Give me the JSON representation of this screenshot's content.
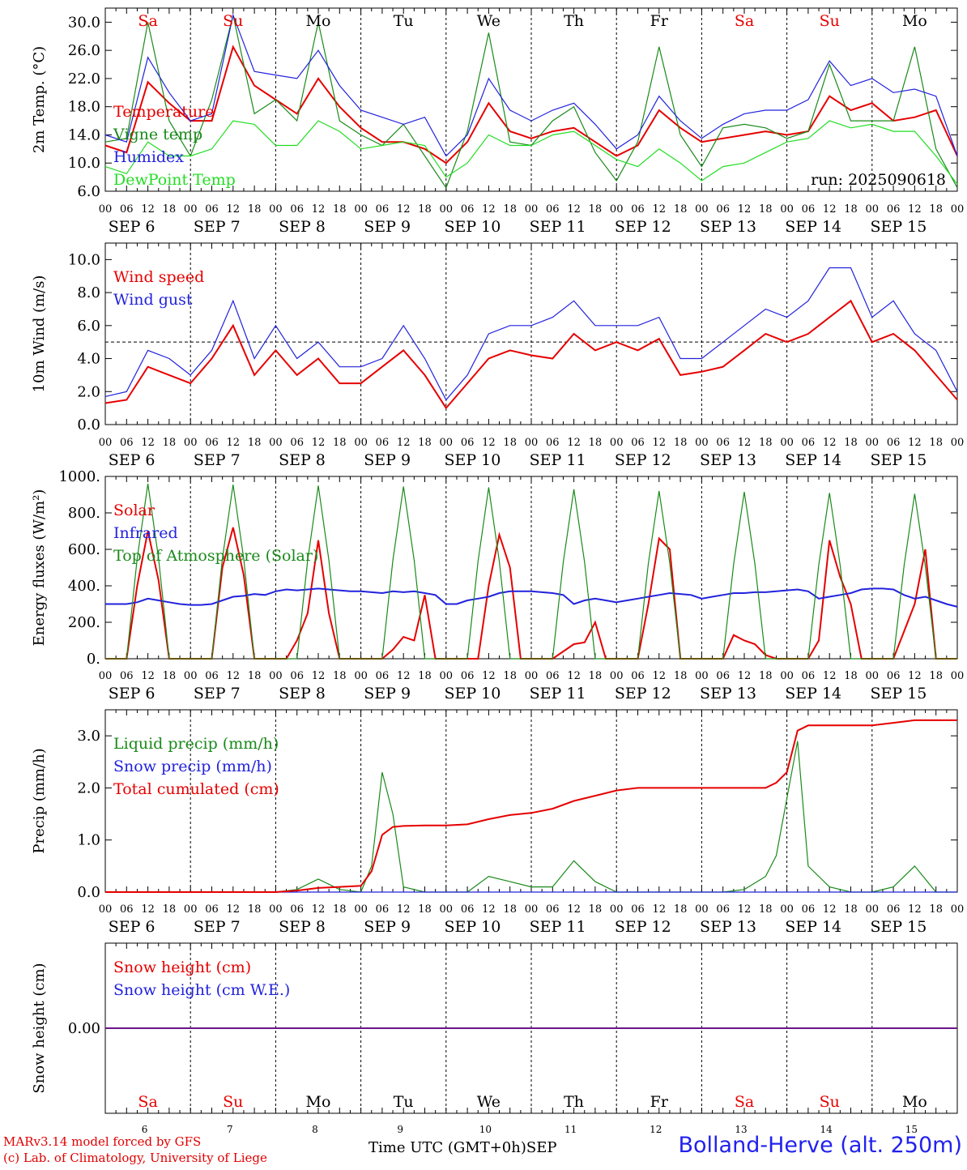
{
  "footer": {
    "credit_line1": "MARv3.14 model forced by GFS",
    "credit_line2": "(c) Lab. of Climatology, University of Liege",
    "time_label": "Time UTC (GMT+0h)",
    "month_label": "SEP",
    "station": "Bolland-Herve (alt. 250m)"
  },
  "colors": {
    "red": "#e60000",
    "green": "#1a8a1a",
    "blue": "#2222dd",
    "lightgreen": "#22dd22",
    "weekend": "#e60000",
    "weekday": "#000000"
  },
  "chart_data": [
    {
      "type": "line",
      "panel": "temperature",
      "ylabel": "2m Temp. (°C)",
      "ylim": [
        6.0,
        32.0
      ],
      "yticks": [
        "6.0",
        "10.0",
        "14.0",
        "18.0",
        "22.0",
        "26.0",
        "30.0"
      ],
      "ytick_values": [
        6,
        10,
        14,
        18,
        22,
        26,
        30
      ],
      "annotation": "run: 2025090618",
      "day_names": [
        "Sa",
        "Su",
        "Mo",
        "Tu",
        "We",
        "Th",
        "Fr",
        "Sa",
        "Su",
        "Mo"
      ],
      "x_hours_from_sep6_00": [
        0,
        6,
        12,
        18,
        24,
        30,
        36,
        42,
        48,
        54,
        60,
        66,
        72,
        78,
        84,
        90,
        96,
        102,
        108,
        114,
        120,
        126,
        132,
        138,
        144,
        150,
        156,
        162,
        168,
        174,
        180,
        186,
        192,
        198,
        204,
        210,
        216,
        222,
        228,
        234,
        240
      ],
      "series": [
        {
          "name": "Temperature",
          "color": "red",
          "values": [
            12.5,
            11.5,
            21.5,
            18.5,
            16.0,
            16.0,
            26.5,
            21.0,
            19.0,
            17.0,
            22.0,
            18.0,
            15.0,
            13.0,
            13.0,
            12.0,
            10.0,
            13.0,
            18.5,
            14.5,
            13.5,
            14.5,
            15.0,
            13.0,
            11.0,
            12.5,
            17.5,
            15.0,
            13.0,
            13.5,
            14.0,
            14.5,
            14.0,
            14.5,
            19.5,
            17.5,
            18.5,
            16.0,
            16.5,
            17.5,
            11.0
          ]
        },
        {
          "name": "Vigne temp",
          "color": "green",
          "values": [
            13.0,
            13.5,
            30.0,
            16.0,
            11.0,
            19.0,
            31.0,
            17.0,
            19.0,
            16.0,
            30.0,
            16.0,
            14.0,
            12.5,
            15.5,
            11.0,
            6.5,
            14.5,
            28.5,
            13.0,
            12.5,
            16.0,
            18.0,
            11.5,
            7.5,
            13.0,
            26.5,
            14.0,
            9.5,
            15.0,
            15.5,
            15.0,
            13.5,
            14.5,
            24.0,
            16.0,
            16.0,
            16.0,
            26.5,
            12.0,
            6.5
          ]
        },
        {
          "name": "Humidex",
          "color": "blue",
          "values": [
            14.0,
            13.0,
            25.0,
            20.0,
            16.0,
            17.0,
            31.0,
            23.0,
            22.5,
            22.0,
            26.0,
            21.0,
            17.5,
            16.5,
            15.5,
            16.5,
            11.0,
            14.0,
            22.0,
            17.5,
            16.0,
            17.5,
            18.5,
            15.5,
            12.0,
            14.0,
            19.5,
            16.0,
            13.5,
            15.5,
            17.0,
            17.5,
            17.5,
            19.0,
            24.5,
            21.0,
            22.0,
            20.0,
            20.5,
            19.5,
            11.0
          ]
        },
        {
          "name": "DewPoint Temp",
          "color": "lightgreen",
          "values": [
            9.5,
            8.5,
            13.0,
            11.0,
            11.0,
            12.0,
            16.0,
            15.5,
            12.5,
            12.5,
            16.0,
            14.5,
            12.0,
            12.5,
            13.0,
            12.5,
            8.0,
            10.0,
            14.0,
            12.5,
            12.5,
            14.0,
            14.5,
            12.5,
            10.5,
            9.5,
            12.0,
            10.0,
            7.5,
            9.5,
            10.0,
            11.5,
            13.0,
            13.5,
            16.0,
            15.0,
            15.5,
            14.5,
            14.5,
            11.0,
            7.0
          ]
        }
      ]
    },
    {
      "type": "line",
      "panel": "wind",
      "ylabel": "10m Wind (m/s)",
      "ylim": [
        0.0,
        11.0
      ],
      "yticks": [
        "0.0",
        "2.0",
        "4.0",
        "6.0",
        "8.0",
        "10.0"
      ],
      "ytick_values": [
        0,
        2,
        4,
        6,
        8,
        10
      ],
      "reference_line": 5.0,
      "x_hours_from_sep6_00": [
        0,
        6,
        12,
        18,
        24,
        30,
        36,
        42,
        48,
        54,
        60,
        66,
        72,
        78,
        84,
        90,
        96,
        102,
        108,
        114,
        120,
        126,
        132,
        138,
        144,
        150,
        156,
        162,
        168,
        174,
        180,
        186,
        192,
        198,
        204,
        210,
        216,
        222,
        228,
        234,
        240
      ],
      "series": [
        {
          "name": "Wind speed",
          "color": "red",
          "values": [
            1.3,
            1.5,
            3.5,
            3.0,
            2.5,
            4.0,
            6.0,
            3.0,
            4.5,
            3.0,
            4.0,
            2.5,
            2.5,
            3.5,
            4.5,
            3.0,
            1.0,
            2.5,
            4.0,
            4.5,
            4.2,
            4.0,
            5.5,
            4.5,
            5.0,
            4.5,
            5.2,
            3.0,
            3.2,
            3.5,
            4.5,
            5.5,
            5.0,
            5.5,
            6.5,
            7.5,
            5.0,
            5.5,
            4.5,
            3.0,
            1.5
          ]
        },
        {
          "name": "Wind gust",
          "color": "blue",
          "values": [
            1.7,
            2.0,
            4.5,
            4.0,
            3.0,
            4.5,
            7.5,
            4.0,
            6.0,
            4.0,
            5.0,
            3.5,
            3.5,
            4.0,
            6.0,
            4.0,
            1.5,
            3.0,
            5.5,
            6.0,
            6.0,
            6.5,
            7.5,
            6.0,
            6.0,
            6.0,
            6.5,
            4.0,
            4.0,
            5.0,
            6.0,
            7.0,
            6.5,
            7.5,
            9.5,
            9.5,
            6.5,
            7.5,
            5.5,
            4.5,
            2.0
          ]
        }
      ]
    },
    {
      "type": "line",
      "panel": "energy",
      "ylabel": "Energy fluxes (W/m²)",
      "ylim": [
        0,
        1000
      ],
      "yticks": [
        "0.",
        "200.",
        "400.",
        "600.",
        "800.",
        "1000."
      ],
      "ytick_values": [
        0,
        200,
        400,
        600,
        800,
        1000
      ],
      "x_hours_from_sep6_00": [
        0,
        3,
        6,
        9,
        12,
        15,
        18,
        21,
        24,
        27,
        30,
        33,
        36,
        39,
        42,
        45,
        48,
        51,
        54,
        57,
        60,
        63,
        66,
        69,
        72,
        75,
        78,
        81,
        84,
        87,
        90,
        93,
        96,
        99,
        102,
        105,
        108,
        111,
        114,
        117,
        120,
        123,
        126,
        129,
        132,
        135,
        138,
        141,
        144,
        147,
        150,
        153,
        156,
        159,
        162,
        165,
        168,
        171,
        174,
        177,
        180,
        183,
        186,
        189,
        192,
        195,
        198,
        201,
        204,
        207,
        210,
        213,
        216,
        219,
        222,
        225,
        228,
        231,
        234,
        237,
        240
      ],
      "series": [
        {
          "name": "Solar",
          "color": "red",
          "values": [
            0,
            0,
            0,
            400,
            700,
            430,
            0,
            0,
            0,
            0,
            0,
            500,
            720,
            460,
            0,
            0,
            0,
            0,
            100,
            250,
            650,
            250,
            0,
            0,
            0,
            0,
            0,
            50,
            120,
            100,
            350,
            0,
            0,
            0,
            0,
            0,
            400,
            680,
            500,
            0,
            0,
            0,
            0,
            40,
            80,
            90,
            200,
            0,
            0,
            0,
            0,
            300,
            660,
            600,
            0,
            0,
            0,
            0,
            0,
            130,
            100,
            80,
            20,
            0,
            0,
            0,
            0,
            100,
            650,
            450,
            300,
            0,
            0,
            0,
            0,
            150,
            300,
            600,
            0,
            0,
            0
          ]
        },
        {
          "name": "Infrared",
          "color": "blue",
          "values": [
            300,
            300,
            300,
            310,
            330,
            320,
            310,
            300,
            295,
            295,
            300,
            320,
            340,
            345,
            355,
            350,
            370,
            380,
            375,
            380,
            385,
            380,
            375,
            370,
            370,
            365,
            360,
            370,
            365,
            370,
            360,
            350,
            300,
            300,
            320,
            330,
            340,
            360,
            370,
            370,
            370,
            365,
            360,
            350,
            300,
            320,
            330,
            320,
            310,
            320,
            330,
            340,
            350,
            360,
            355,
            350,
            330,
            340,
            350,
            360,
            360,
            365,
            365,
            370,
            375,
            380,
            370,
            330,
            340,
            350,
            360,
            380,
            385,
            385,
            380,
            350,
            330,
            340,
            320,
            300,
            285
          ]
        },
        {
          "name": "Top of Atmosphere (Solar)",
          "color": "green",
          "values": [
            0,
            0,
            0,
            550,
            960,
            550,
            0,
            0,
            0,
            0,
            0,
            550,
            955,
            550,
            0,
            0,
            0,
            0,
            0,
            540,
            950,
            540,
            0,
            0,
            0,
            0,
            0,
            540,
            945,
            540,
            0,
            0,
            0,
            0,
            0,
            535,
            940,
            535,
            0,
            0,
            0,
            0,
            0,
            530,
            930,
            530,
            0,
            0,
            0,
            0,
            0,
            525,
            920,
            525,
            0,
            0,
            0,
            0,
            0,
            520,
            915,
            520,
            0,
            0,
            0,
            0,
            0,
            515,
            910,
            515,
            0,
            0,
            0,
            0,
            0,
            510,
            905,
            510,
            0,
            0,
            0
          ]
        }
      ]
    },
    {
      "type": "line",
      "panel": "precip",
      "ylabel": "Precip (mm/h)",
      "ylim": [
        0.0,
        3.5
      ],
      "yticks": [
        "0.0",
        "1.0",
        "2.0",
        "3.0"
      ],
      "ytick_values": [
        0,
        1,
        2,
        3
      ],
      "x_hours_from_sep6_00": [
        0,
        6,
        12,
        18,
        24,
        30,
        36,
        42,
        48,
        54,
        60,
        66,
        72,
        75,
        78,
        81,
        84,
        90,
        96,
        102,
        108,
        114,
        120,
        126,
        132,
        138,
        144,
        150,
        156,
        162,
        168,
        174,
        180,
        186,
        189,
        192,
        195,
        198,
        204,
        210,
        216,
        222,
        228,
        234,
        240
      ],
      "series": [
        {
          "name": "Liquid precip (mm/h)",
          "color": "green",
          "values": [
            0,
            0,
            0,
            0,
            0,
            0,
            0,
            0,
            0,
            0.05,
            0.25,
            0.05,
            0,
            0.5,
            2.3,
            1.5,
            0.1,
            0,
            0,
            0,
            0.3,
            0.2,
            0.1,
            0.1,
            0.6,
            0.2,
            0,
            0,
            0,
            0,
            0,
            0,
            0.05,
            0.3,
            0.7,
            1.8,
            2.9,
            0.5,
            0.1,
            0,
            0,
            0.1,
            0.5,
            0,
            0
          ]
        },
        {
          "name": "Snow precip (mm/h)",
          "color": "blue",
          "values": [
            0,
            0,
            0,
            0,
            0,
            0,
            0,
            0,
            0,
            0,
            0,
            0,
            0,
            0,
            0,
            0,
            0,
            0,
            0,
            0,
            0,
            0,
            0,
            0,
            0,
            0,
            0,
            0,
            0,
            0,
            0,
            0,
            0,
            0,
            0,
            0,
            0,
            0,
            0,
            0,
            0,
            0,
            0,
            0,
            0
          ]
        },
        {
          "name": "Total cumulated (cm)",
          "color": "red",
          "values": [
            0,
            0,
            0,
            0,
            0,
            0,
            0,
            0,
            0,
            0.03,
            0.08,
            0.1,
            0.12,
            0.4,
            1.1,
            1.25,
            1.27,
            1.28,
            1.28,
            1.3,
            1.4,
            1.48,
            1.52,
            1.6,
            1.75,
            1.85,
            1.95,
            2.0,
            2.0,
            2.0,
            2.0,
            2.0,
            2.0,
            2.0,
            2.1,
            2.3,
            3.1,
            3.2,
            3.2,
            3.2,
            3.2,
            3.25,
            3.3,
            3.3,
            3.3
          ]
        }
      ]
    },
    {
      "type": "line",
      "panel": "snow",
      "ylabel": "Snow height (cm)",
      "yticks": [
        "0.00"
      ],
      "ytick_values": [
        0
      ],
      "ylim": [
        -1,
        1
      ],
      "day_names": [
        "Sa",
        "Su",
        "Mo",
        "Tu",
        "We",
        "Th",
        "Fr",
        "Sa",
        "Su",
        "Mo"
      ],
      "day_numbers": [
        "6",
        "7",
        "8",
        "9",
        "10",
        "11",
        "12",
        "13",
        "14",
        "15"
      ],
      "x_hours_from_sep6_00": [
        0,
        240
      ],
      "series": [
        {
          "name": "Snow height (cm)",
          "color": "red",
          "values": [
            0,
            0
          ]
        },
        {
          "name": "Snow height (cm W.E.)",
          "color": "blue",
          "values": [
            0,
            0
          ]
        }
      ]
    }
  ],
  "axis": {
    "hour_labels": [
      "00",
      "06",
      "12",
      "18"
    ],
    "final_hour_label": "00",
    "day_labels": [
      "SEP  6",
      "SEP  7",
      "SEP  8",
      "SEP  9",
      "SEP 10",
      "SEP 11",
      "SEP 12",
      "SEP 13",
      "SEP 14",
      "SEP 15"
    ],
    "weekend_flags": [
      true,
      true,
      false,
      false,
      false,
      false,
      false,
      true,
      true,
      false
    ]
  }
}
